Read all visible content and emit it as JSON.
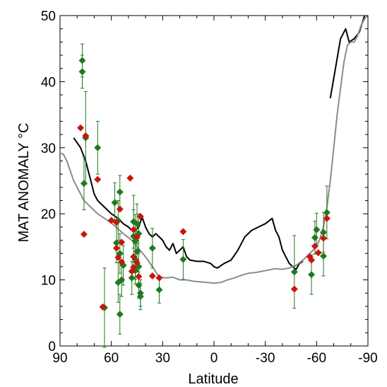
{
  "chart_data": {
    "type": "scatter",
    "title": "",
    "xlabel": "Latitude",
    "ylabel": "MAT ANOMALY °C",
    "xlim": [
      90,
      -90
    ],
    "ylim": [
      0,
      50
    ],
    "x_ticks": [
      90,
      60,
      30,
      0,
      -30,
      -60,
      -90
    ],
    "x_tick_labels": [
      "90",
      "60",
      "30",
      "0",
      "-30",
      "-60",
      "-90"
    ],
    "y_ticks": [
      0,
      10,
      20,
      30,
      40,
      50
    ],
    "y_tick_labels": [
      "0",
      "10",
      "20",
      "30",
      "40",
      "50"
    ],
    "grid": false,
    "lines": [
      {
        "color": "#000000",
        "segments": [
          [
            [
              82,
              31.5
            ],
            [
              78,
              30
            ],
            [
              75,
              28
            ],
            [
              72,
              25
            ],
            [
              70,
              23
            ],
            [
              68,
              22
            ],
            [
              64,
              21
            ],
            [
              60,
              20
            ],
            [
              57,
              19.5
            ],
            [
              55,
              19
            ],
            [
              53,
              18.5
            ],
            [
              50,
              18
            ],
            [
              48,
              17.5
            ],
            [
              46,
              17.5
            ],
            [
              44,
              18
            ],
            [
              42,
              19.5
            ],
            [
              40,
              18
            ],
            [
              38,
              17
            ],
            [
              36,
              16.5
            ],
            [
              34,
              17
            ],
            [
              32,
              16.5
            ],
            [
              30,
              16
            ],
            [
              28,
              15
            ],
            [
              26,
              14.5
            ],
            [
              24,
              15.5
            ],
            [
              22,
              14
            ],
            [
              20,
              14.5
            ],
            [
              18,
              15
            ],
            [
              16,
              13.5
            ],
            [
              14,
              13
            ],
            [
              10,
              12.8
            ],
            [
              6,
              12.8
            ],
            [
              2,
              12.5
            ],
            [
              0,
              12
            ],
            [
              -2,
              11.8
            ],
            [
              -6,
              12.5
            ],
            [
              -10,
              13
            ],
            [
              -14,
              14.5
            ],
            [
              -18,
              16.5
            ],
            [
              -22,
              17.5
            ],
            [
              -26,
              18
            ],
            [
              -30,
              18.5
            ],
            [
              -34,
              19.3
            ],
            [
              -36,
              17.5
            ],
            [
              -38,
              16.5
            ],
            [
              -40,
              14.5
            ],
            [
              -42,
              13.5
            ],
            [
              -44,
              12.5
            ],
            [
              -46,
              12
            ],
            [
              -48,
              11.6
            ],
            [
              -50,
              12.5
            ],
            [
              -52,
              12.8
            ]
          ],
          [
            [
              -68,
              37.5
            ],
            [
              -71,
              42
            ],
            [
              -74,
              46.5
            ],
            [
              -77,
              48
            ],
            [
              -79,
              46
            ],
            [
              -82,
              46.5
            ],
            [
              -85,
              47.5
            ],
            [
              -88,
              50
            ]
          ]
        ]
      },
      {
        "color": "#8c8c8c",
        "segments": [
          [
            [
              90,
              29.2
            ],
            [
              88,
              29
            ],
            [
              86,
              28
            ],
            [
              84,
              26.5
            ],
            [
              82,
              25
            ],
            [
              80,
              24
            ],
            [
              78,
              23
            ],
            [
              76,
              22
            ],
            [
              74,
              21.5
            ],
            [
              72,
              21
            ],
            [
              70,
              20.5
            ],
            [
              68,
              20
            ],
            [
              64,
              19.3
            ],
            [
              60,
              18.6
            ],
            [
              56,
              17.7
            ],
            [
              52,
              16.8
            ],
            [
              48,
              16
            ],
            [
              44,
              14.7
            ],
            [
              40,
              13.5
            ],
            [
              36,
              12
            ],
            [
              32,
              10.4
            ],
            [
              28,
              10.3
            ],
            [
              24,
              10.4
            ],
            [
              20,
              10
            ],
            [
              16,
              10
            ],
            [
              12,
              9.8
            ],
            [
              8,
              9.7
            ],
            [
              4,
              9.6
            ],
            [
              0,
              9.5
            ],
            [
              -4,
              9.6
            ],
            [
              -8,
              10
            ],
            [
              -12,
              10.3
            ],
            [
              -16,
              10.7
            ],
            [
              -20,
              11
            ],
            [
              -24,
              11.1
            ],
            [
              -28,
              11.3
            ],
            [
              -32,
              11.5
            ],
            [
              -36,
              11.7
            ],
            [
              -40,
              11.6
            ],
            [
              -44,
              11.8
            ],
            [
              -48,
              12.2
            ],
            [
              -52,
              13
            ],
            [
              -56,
              14
            ],
            [
              -60,
              15
            ],
            [
              -62,
              16.3
            ],
            [
              -64,
              18
            ],
            [
              -66,
              21
            ],
            [
              -68,
              25
            ],
            [
              -70,
              30
            ],
            [
              -72,
              35
            ],
            [
              -74,
              39
            ],
            [
              -76,
              43
            ],
            [
              -78,
              45.5
            ],
            [
              -80,
              46
            ],
            [
              -82,
              46
            ],
            [
              -84,
              47
            ],
            [
              -86,
              48.5
            ],
            [
              -88,
              49.5
            ],
            [
              -90,
              50
            ]
          ]
        ]
      }
    ],
    "series": [
      {
        "color": "#1f7a1f",
        "marker": "diamond",
        "points": [
          {
            "x": 77,
            "y": 43.2,
            "err": 2.5,
            "xerr": 1.5
          },
          {
            "x": 77,
            "y": 41.5,
            "err": 2.5,
            "xerr": 1.5
          },
          {
            "x": 75,
            "y": 31.5,
            "err": 7,
            "xerr": 1.5
          },
          {
            "x": 76,
            "y": 24.6,
            "err": 4,
            "xerr": 1.5
          },
          {
            "x": 68,
            "y": 30,
            "err": 4,
            "xerr": 1.5
          },
          {
            "x": 64,
            "y": 5.8,
            "err": 6,
            "xerr": 2
          },
          {
            "x": 58,
            "y": 21.7,
            "err": 3,
            "xerr": 1.5
          },
          {
            "x": 56,
            "y": 19,
            "err": 3,
            "xerr": 1.5
          },
          {
            "x": 55,
            "y": 23.3,
            "err": 2.5,
            "xerr": 1.5
          },
          {
            "x": 57,
            "y": 15.6,
            "err": 3,
            "xerr": 1.5
          },
          {
            "x": 55,
            "y": 14,
            "err": 3,
            "xerr": 1.5
          },
          {
            "x": 53,
            "y": 12.2,
            "err": 3,
            "xerr": 1.5
          },
          {
            "x": 56,
            "y": 9.6,
            "err": 3,
            "xerr": 1.5
          },
          {
            "x": 54,
            "y": 10,
            "err": 2.5,
            "xerr": 1.5
          },
          {
            "x": 55,
            "y": 4.8,
            "err": 3,
            "xerr": 1.5
          },
          {
            "x": 47,
            "y": 18.8,
            "err": 4,
            "xerr": 1.5
          },
          {
            "x": 47,
            "y": 16.6,
            "err": 4,
            "xerr": 1.5
          },
          {
            "x": 46,
            "y": 15.9,
            "err": 4,
            "xerr": 1.5
          },
          {
            "x": 45,
            "y": 18.5,
            "err": 3,
            "xerr": 1.5
          },
          {
            "x": 44,
            "y": 17,
            "err": 3,
            "xerr": 1.5
          },
          {
            "x": 46,
            "y": 13.1,
            "err": 3,
            "xerr": 1.5
          },
          {
            "x": 45,
            "y": 14.3,
            "err": 3,
            "xerr": 1.5
          },
          {
            "x": 44,
            "y": 12,
            "err": 2.5,
            "xerr": 1.5
          },
          {
            "x": 48,
            "y": 10.3,
            "err": 2.5,
            "xerr": 1.5
          },
          {
            "x": 46,
            "y": 11.4,
            "err": 2,
            "xerr": 1.5
          },
          {
            "x": 44,
            "y": 9.2,
            "err": 2,
            "xerr": 1.5
          },
          {
            "x": 43,
            "y": 8,
            "err": 2,
            "xerr": 1.5
          },
          {
            "x": 43,
            "y": 7.5,
            "err": 2,
            "xerr": 1.5
          },
          {
            "x": 36,
            "y": 14.8,
            "err": 3,
            "xerr": 1.5
          },
          {
            "x": 32,
            "y": 8.5,
            "err": 2,
            "xerr": 1.5
          },
          {
            "x": 18,
            "y": 13.1,
            "err": 3,
            "xerr": 1.5
          },
          {
            "x": -47,
            "y": 11.2,
            "err": 5.5,
            "xerr": 1.5
          },
          {
            "x": -57,
            "y": 10.8,
            "err": 3,
            "xerr": 1.5
          },
          {
            "x": -59,
            "y": 16.4,
            "err": 2.5,
            "xerr": 1.5
          },
          {
            "x": -60,
            "y": 17.6,
            "err": 2.5,
            "xerr": 1.5
          },
          {
            "x": -64,
            "y": 17.2,
            "err": 3,
            "xerr": 1.5
          },
          {
            "x": -64,
            "y": 13.6,
            "err": 3,
            "xerr": 1.5
          },
          {
            "x": -66,
            "y": 20.2,
            "err": 4,
            "xerr": 1.5
          }
        ]
      },
      {
        "color": "#c8160c",
        "marker": "diamond",
        "points": [
          {
            "x": 78,
            "y": 33,
            "xerr": 1.5
          },
          {
            "x": 75,
            "y": 31.8,
            "xerr": 1.5
          },
          {
            "x": 76,
            "y": 16.9,
            "xerr": 1.5
          },
          {
            "x": 68,
            "y": 25.2,
            "xerr": 1.5
          },
          {
            "x": 65,
            "y": 5.9,
            "xerr": 1.5
          },
          {
            "x": 60,
            "y": 19,
            "xerr": 1.5
          },
          {
            "x": 57,
            "y": 18.7,
            "xerr": 1.5
          },
          {
            "x": 55,
            "y": 20.7,
            "xerr": 1.5
          },
          {
            "x": 57,
            "y": 14.8,
            "xerr": 1.5
          },
          {
            "x": 54,
            "y": 15.7,
            "xerr": 1.5
          },
          {
            "x": 56,
            "y": 13.4,
            "xerr": 1.5
          },
          {
            "x": 54,
            "y": 12.7,
            "xerr": 1.5
          },
          {
            "x": 49,
            "y": 25.4,
            "xerr": 1.5
          },
          {
            "x": 47,
            "y": 17.6,
            "xerr": 1.5
          },
          {
            "x": 45,
            "y": 16.5,
            "xerr": 1.5
          },
          {
            "x": 43,
            "y": 19.6,
            "xerr": 1.5
          },
          {
            "x": 47,
            "y": 13.5,
            "xerr": 1.5
          },
          {
            "x": 45,
            "y": 12.6,
            "xerr": 1.5
          },
          {
            "x": 48,
            "y": 11.3,
            "xerr": 1.5
          },
          {
            "x": 47,
            "y": 11.9,
            "xerr": 1.5
          },
          {
            "x": 44,
            "y": 10.5,
            "xerr": 1.5
          },
          {
            "x": 36,
            "y": 10.6,
            "xerr": 1.5
          },
          {
            "x": 32,
            "y": 10.3,
            "xerr": 1.5
          },
          {
            "x": 18,
            "y": 17.3,
            "xerr": 1.5
          },
          {
            "x": -47,
            "y": 8.6,
            "xerr": 1.5
          },
          {
            "x": -56,
            "y": 13.5,
            "xerr": 1.5
          },
          {
            "x": -57,
            "y": 13,
            "xerr": 1.5
          },
          {
            "x": -59,
            "y": 15.1,
            "xerr": 1.5
          },
          {
            "x": -61,
            "y": 14.1,
            "xerr": 1.5
          },
          {
            "x": -64,
            "y": 16.3,
            "xerr": 1.5
          },
          {
            "x": -66,
            "y": 19.3,
            "xerr": 1.5
          }
        ]
      }
    ]
  }
}
